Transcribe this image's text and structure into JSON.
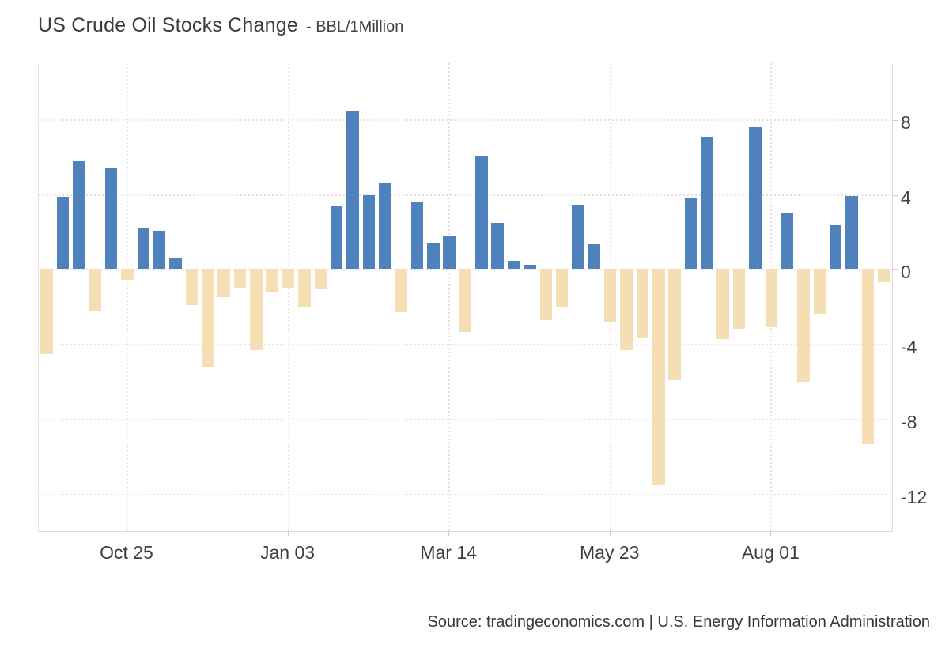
{
  "title": {
    "main": "US Crude Oil Stocks Change",
    "sub": "- BBL/1Million"
  },
  "source": "Source: tradingeconomics.com | U.S. Energy Information Administration",
  "chart_data": {
    "type": "bar",
    "title": "US Crude Oil Stocks Change",
    "unit": "BBL/1Million",
    "ylabel": "",
    "xlabel": "",
    "grid": "dotted",
    "legend": "none",
    "y_ticks": [
      8,
      4,
      0,
      -4,
      -8,
      -12
    ],
    "ylim": [
      -13.95,
      11.03
    ],
    "x_tick_labels": [
      "Oct 25",
      "Jan 03",
      "Mar 14",
      "May 23",
      "Aug 01"
    ],
    "x_tick_indices": [
      5,
      15,
      25,
      35,
      45
    ],
    "values": [
      -4.5,
      3.9,
      5.8,
      -2.2,
      5.4,
      -0.55,
      2.2,
      2.1,
      0.6,
      -1.9,
      -5.2,
      -1.45,
      -1.0,
      -4.3,
      -1.2,
      -0.95,
      -1.95,
      -1.05,
      3.4,
      8.5,
      4.0,
      4.6,
      -2.25,
      3.65,
      1.45,
      1.8,
      -3.3,
      6.1,
      2.5,
      0.5,
      0.25,
      -2.7,
      -2.0,
      3.45,
      1.35,
      -2.8,
      -4.3,
      -3.65,
      -11.5,
      -5.9,
      3.8,
      7.1,
      -3.7,
      -3.15,
      7.6,
      -3.05,
      3.0,
      -6.0,
      -2.35,
      2.4,
      3.95,
      -9.3,
      -0.65
    ],
    "colors": {
      "positive": "#4f81bd",
      "negative": "#f5deb3",
      "grid": "#e2e2e2",
      "axis": "#d9d9d9",
      "text": "#3f3f3f"
    }
  }
}
